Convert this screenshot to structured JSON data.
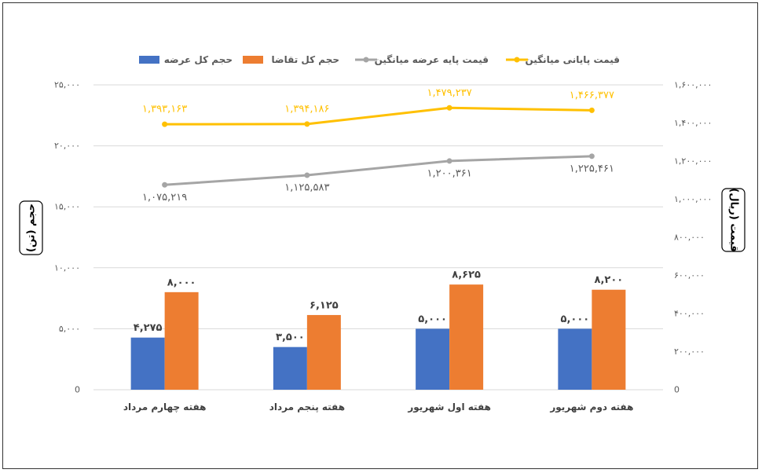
{
  "chart_data": {
    "type": "bar",
    "categories": [
      "هفته چهارم مرداد",
      "هفته پنجم مرداد",
      "هفته اول شهریور",
      "هفته دوم شهریور"
    ],
    "series": [
      {
        "name": "حجم کل عرضه",
        "kind": "bar",
        "axis": "left",
        "color": "#4472C4",
        "values": [
          4275,
          3500,
          5000,
          5000
        ],
        "labels": [
          "۴,۲۷۵",
          "۳,۵۰۰",
          "۵,۰۰۰",
          "۵,۰۰۰"
        ]
      },
      {
        "name": "حجم کل تقاضا",
        "kind": "bar",
        "axis": "left",
        "color": "#ED7D31",
        "values": [
          8000,
          6125,
          8625,
          8200
        ],
        "labels": [
          "۸,۰۰۰",
          "۶,۱۲۵",
          "۸,۶۲۵",
          "۸,۲۰۰"
        ]
      },
      {
        "name": "قیمت پایه عرضه میانگین",
        "kind": "line",
        "axis": "right",
        "color": "#A5A5A5",
        "values": [
          1075219,
          1125583,
          1200361,
          1225461
        ],
        "labels": [
          "۱,۰۷۵,۲۱۹",
          "۱,۱۲۵,۵۸۳",
          "۱,۲۰۰,۳۶۱",
          "۱,۲۲۵,۴۶۱"
        ]
      },
      {
        "name": "قیمت پایانی میانگین",
        "kind": "line",
        "axis": "right",
        "color": "#FFC000",
        "values": [
          1393163,
          1394186,
          1479237,
          1466377
        ],
        "labels": [
          "۱,۳۹۳,۱۶۳",
          "۱,۳۹۴,۱۸۶",
          "۱,۴۷۹,۲۳۷",
          "۱,۴۶۶,۳۷۷"
        ]
      }
    ],
    "ylabel_left": "حجم (تن)",
    "ylabel_right": "قیمت (ریال)",
    "ylim_left": [
      0,
      25000
    ],
    "ylim_right": [
      0,
      1600000
    ],
    "yticks_left": [
      "0",
      "۵,۰۰۰",
      "۱۰,۰۰۰",
      "۱۵,۰۰۰",
      "۲۰,۰۰۰",
      "۲۵,۰۰۰"
    ],
    "yticks_right": [
      "0",
      "۲۰۰,۰۰۰",
      "۴۰۰,۰۰۰",
      "۶۰۰,۰۰۰",
      "۸۰۰,۰۰۰",
      "۱,۰۰۰,۰۰۰",
      "۱,۲۰۰,۰۰۰",
      "۱,۴۰۰,۰۰۰",
      "۱,۶۰۰,۰۰۰"
    ],
    "legend_order": [
      3,
      2,
      1,
      0
    ],
    "legend_position": "top",
    "grid": true
  }
}
